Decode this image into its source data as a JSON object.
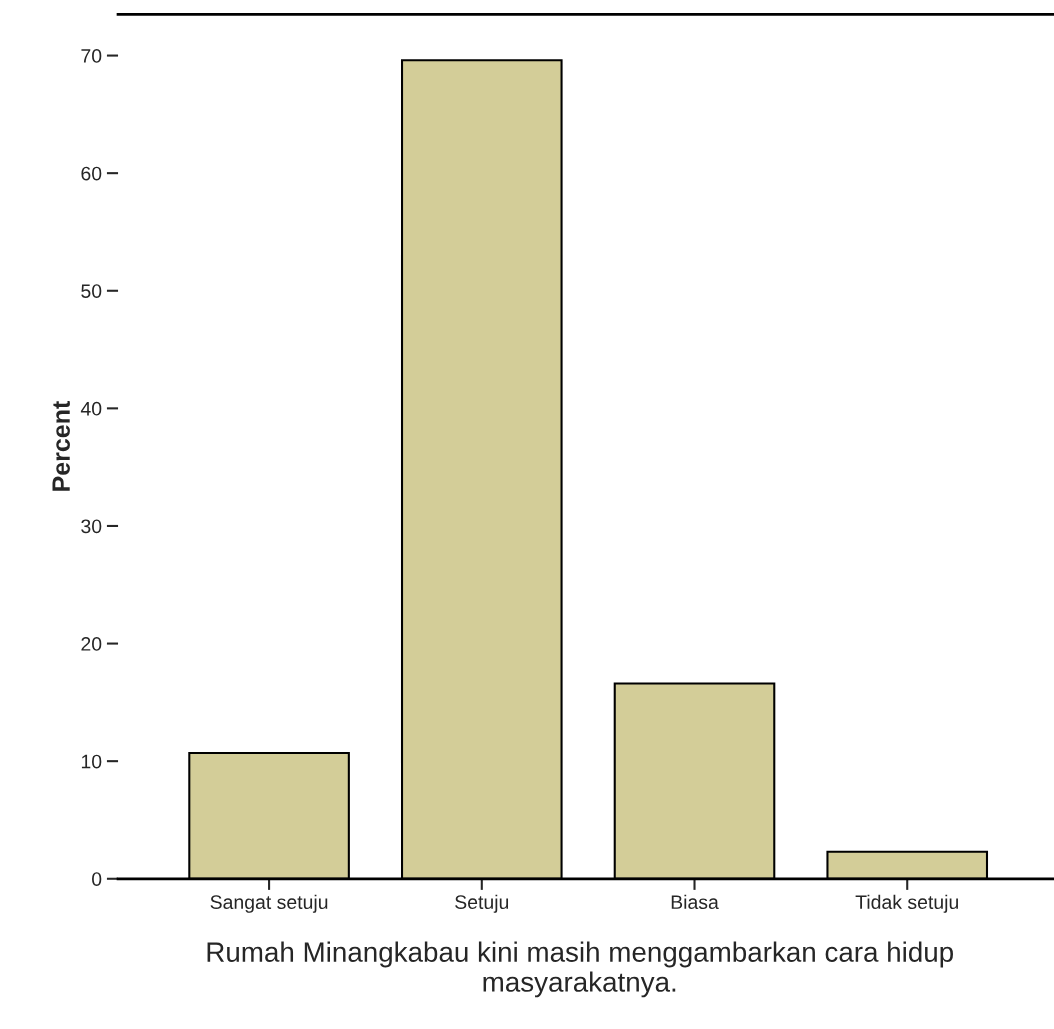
{
  "chart_data": {
    "type": "bar",
    "xlabel": "Rumah Minangkabau kini masih menggambarkan cara hidup masyarakatnya.",
    "ylabel": "Percent",
    "categories": [
      "Sangat setuju",
      "Setuju",
      "Biasa",
      "Tidak setuju"
    ],
    "values": [
      10.7,
      69.6,
      16.6,
      2.3
    ],
    "color": "#d3cd98",
    "ylim": [
      0,
      73.5
    ],
    "yticks": [
      0,
      10,
      20,
      30,
      40,
      50,
      60,
      70
    ],
    "grid": false,
    "legend": false
  }
}
